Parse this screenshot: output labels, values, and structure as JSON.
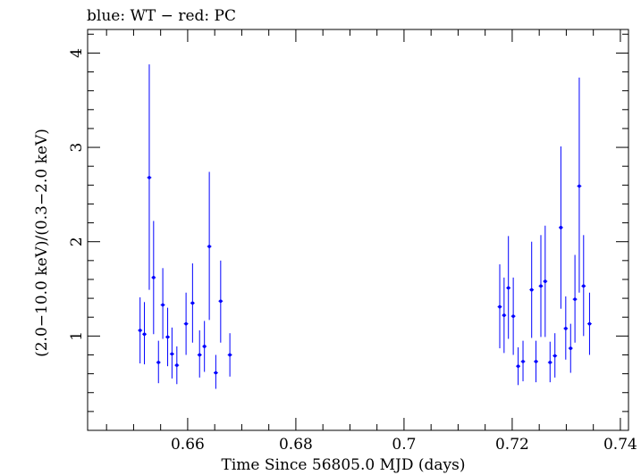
{
  "chart_data": {
    "type": "scatter",
    "title": "blue: WT − red: PC",
    "xlabel": "Time Since 56805.0 MJD (days)",
    "ylabel": "(2.0−10.0 keV)/(0.3−2.0 keV)",
    "xlim": [
      0.6415,
      0.7415
    ],
    "ylim": [
      0.0,
      4.25
    ],
    "x_major_ticks": [
      0.66,
      0.68,
      0.7,
      0.72,
      0.74
    ],
    "x_tick_labels": [
      "0.66",
      "0.68",
      "0.7",
      "0.72",
      "0.74"
    ],
    "y_major_ticks": [
      1,
      2,
      3,
      4
    ],
    "y_tick_labels": [
      "1",
      "2",
      "3",
      "4"
    ],
    "grid": false,
    "series": [
      {
        "color": "#0000ff",
        "points": [
          {
            "x": 0.6512,
            "xerr": 0.0004,
            "y": 1.06,
            "ylo": 0.71,
            "yhi": 1.41
          },
          {
            "x": 0.652,
            "xerr": 0.0004,
            "y": 1.02,
            "ylo": 0.7,
            "yhi": 1.36
          },
          {
            "x": 0.6529,
            "xerr": 0.0004,
            "y": 2.68,
            "ylo": 1.49,
            "yhi": 3.88
          },
          {
            "x": 0.6537,
            "xerr": 0.0004,
            "y": 1.62,
            "ylo": 1.02,
            "yhi": 2.22
          },
          {
            "x": 0.6546,
            "xerr": 0.0004,
            "y": 0.72,
            "ylo": 0.5,
            "yhi": 0.95
          },
          {
            "x": 0.6554,
            "xerr": 0.0004,
            "y": 1.33,
            "ylo": 0.97,
            "yhi": 1.72
          },
          {
            "x": 0.6563,
            "xerr": 0.0004,
            "y": 0.99,
            "ylo": 0.68,
            "yhi": 1.3
          },
          {
            "x": 0.6571,
            "xerr": 0.0004,
            "y": 0.81,
            "ylo": 0.55,
            "yhi": 1.09
          },
          {
            "x": 0.658,
            "xerr": 0.0004,
            "y": 0.69,
            "ylo": 0.49,
            "yhi": 0.89
          },
          {
            "x": 0.6597,
            "xerr": 0.0004,
            "y": 1.13,
            "ylo": 0.8,
            "yhi": 1.46
          },
          {
            "x": 0.6609,
            "xerr": 0.0004,
            "y": 1.35,
            "ylo": 0.93,
            "yhi": 1.77
          },
          {
            "x": 0.6622,
            "xerr": 0.0004,
            "y": 0.8,
            "ylo": 0.56,
            "yhi": 1.06
          },
          {
            "x": 0.6631,
            "xerr": 0.0004,
            "y": 0.89,
            "ylo": 0.62,
            "yhi": 1.16
          },
          {
            "x": 0.664,
            "xerr": 0.0004,
            "y": 1.95,
            "ylo": 1.17,
            "yhi": 2.74
          },
          {
            "x": 0.6652,
            "xerr": 0.0004,
            "y": 0.61,
            "ylo": 0.44,
            "yhi": 0.8
          },
          {
            "x": 0.6661,
            "xerr": 0.0004,
            "y": 1.37,
            "ylo": 0.93,
            "yhi": 1.8
          },
          {
            "x": 0.6678,
            "xerr": 0.0004,
            "y": 0.8,
            "ylo": 0.57,
            "yhi": 1.03
          },
          {
            "x": 0.7177,
            "xerr": 0.0004,
            "y": 1.31,
            "ylo": 0.87,
            "yhi": 1.76
          },
          {
            "x": 0.7185,
            "xerr": 0.0004,
            "y": 1.22,
            "ylo": 0.82,
            "yhi": 1.62
          },
          {
            "x": 0.7193,
            "xerr": 0.0004,
            "y": 1.51,
            "ylo": 0.97,
            "yhi": 2.06
          },
          {
            "x": 0.7202,
            "xerr": 0.0004,
            "y": 1.21,
            "ylo": 0.8,
            "yhi": 1.62
          },
          {
            "x": 0.7211,
            "xerr": 0.0004,
            "y": 0.68,
            "ylo": 0.48,
            "yhi": 0.88
          },
          {
            "x": 0.722,
            "xerr": 0.0004,
            "y": 0.73,
            "ylo": 0.52,
            "yhi": 0.95
          },
          {
            "x": 0.7236,
            "xerr": 0.0004,
            "y": 1.49,
            "ylo": 0.98,
            "yhi": 2.0
          },
          {
            "x": 0.7244,
            "xerr": 0.0004,
            "y": 0.73,
            "ylo": 0.51,
            "yhi": 0.95
          },
          {
            "x": 0.7253,
            "xerr": 0.0004,
            "y": 1.53,
            "ylo": 0.99,
            "yhi": 2.07
          },
          {
            "x": 0.7261,
            "xerr": 0.0004,
            "y": 1.58,
            "ylo": 0.99,
            "yhi": 2.17
          },
          {
            "x": 0.727,
            "xerr": 0.0004,
            "y": 0.72,
            "ylo": 0.51,
            "yhi": 0.94
          },
          {
            "x": 0.7279,
            "xerr": 0.0004,
            "y": 0.79,
            "ylo": 0.56,
            "yhi": 1.03
          },
          {
            "x": 0.729,
            "xerr": 0.0004,
            "y": 2.15,
            "ylo": 1.29,
            "yhi": 3.01
          },
          {
            "x": 0.7299,
            "xerr": 0.0004,
            "y": 1.08,
            "ylo": 0.75,
            "yhi": 1.42
          },
          {
            "x": 0.7308,
            "xerr": 0.0004,
            "y": 0.87,
            "ylo": 0.61,
            "yhi": 1.13
          },
          {
            "x": 0.7316,
            "xerr": 0.0004,
            "y": 1.39,
            "ylo": 0.93,
            "yhi": 1.86
          },
          {
            "x": 0.7324,
            "xerr": 0.0004,
            "y": 2.59,
            "ylo": 1.46,
            "yhi": 3.74
          },
          {
            "x": 0.7332,
            "xerr": 0.0004,
            "y": 1.53,
            "ylo": 1.0,
            "yhi": 2.07
          },
          {
            "x": 0.7343,
            "xerr": 0.0004,
            "y": 1.13,
            "ylo": 0.8,
            "yhi": 1.46
          }
        ]
      }
    ]
  }
}
